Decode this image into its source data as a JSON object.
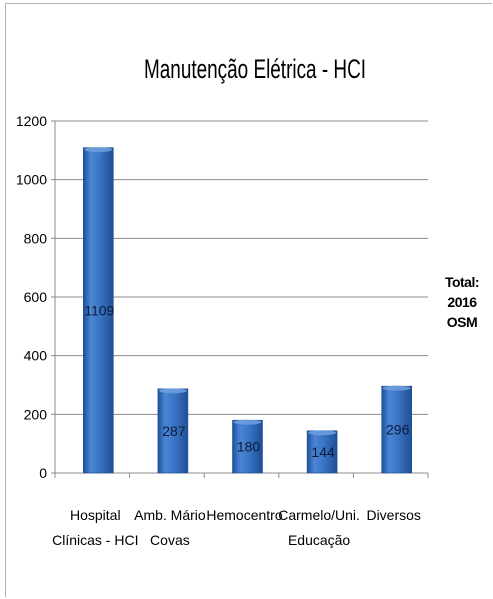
{
  "chart_data": {
    "type": "bar",
    "title": "Manutenção Elétrica - HCI",
    "categories": [
      [
        "Hospital",
        "Clínicas - HCI"
      ],
      [
        "Amb. Mário",
        "Covas"
      ],
      [
        "Hemocentro"
      ],
      [
        "Carmelo/Uni.",
        "Educação"
      ],
      [
        "Diversos"
      ]
    ],
    "values": [
      1109,
      287,
      180,
      144,
      296
    ],
    "data_labels": [
      "1109",
      "287",
      "180",
      "144",
      "296"
    ],
    "ylim": [
      0,
      1200
    ],
    "yticks": [
      0,
      200,
      400,
      600,
      800,
      1000,
      1200
    ],
    "grid": true,
    "bar_color": "#3a74c4",
    "bar_color_light": "#6fa0e0",
    "bar_color_dark": "#1f4f94"
  },
  "annotation": {
    "line1": "Total:",
    "line2": "2016 OSM"
  }
}
